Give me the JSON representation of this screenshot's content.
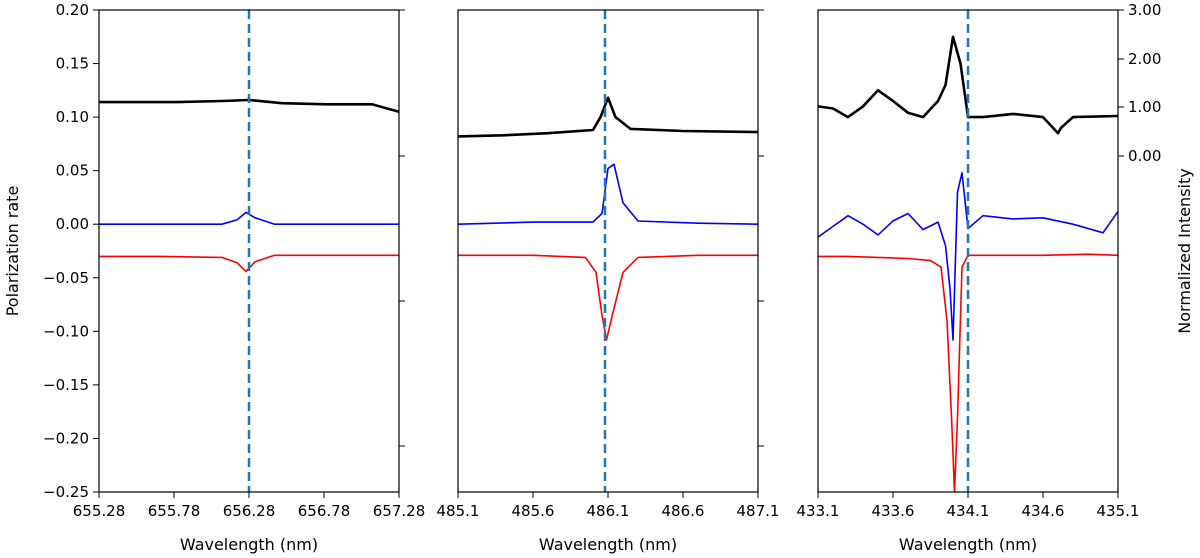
{
  "figure": {
    "y_left_label": "Polarization rate",
    "y_right_label": "Normalized Intensity"
  },
  "colors": {
    "black": "#000000",
    "blue": "#0000ff",
    "red": "#ff0000",
    "dashed": "#1f77b4"
  },
  "chart_data": [
    {
      "type": "line",
      "xlabel": "Wavelength (nm)",
      "ylabel": "Polarization rate",
      "xlim": [
        655.28,
        657.28
      ],
      "xticks": [
        "655.28",
        "655.78",
        "656.28",
        "656.78",
        "657.28"
      ],
      "ylim": [
        -0.25,
        0.2
      ],
      "yticks": [
        "0.20",
        "0.15",
        "0.10",
        "0.05",
        "0.00",
        "−0.05",
        "−0.10",
        "−0.15",
        "−0.20",
        "−0.25"
      ],
      "vline_x": 656.28,
      "series": [
        {
          "color": "black",
          "x": [
            655.28,
            655.5,
            655.8,
            656.1,
            656.28,
            656.5,
            656.8,
            657.1,
            657.28
          ],
          "y": [
            0.114,
            0.114,
            0.114,
            0.115,
            0.116,
            0.113,
            0.112,
            0.112,
            0.105
          ]
        },
        {
          "color": "blue",
          "x": [
            655.28,
            655.7,
            656.1,
            656.2,
            656.26,
            656.32,
            656.45,
            656.8,
            657.28
          ],
          "y": [
            0.0,
            0.0,
            0.0,
            0.004,
            0.011,
            0.006,
            0.0,
            0.0,
            0.0
          ]
        },
        {
          "color": "red",
          "x": [
            655.28,
            655.7,
            656.1,
            656.2,
            656.26,
            656.32,
            656.45,
            656.8,
            657.28
          ],
          "y": [
            -0.03,
            -0.03,
            -0.031,
            -0.036,
            -0.044,
            -0.035,
            -0.029,
            -0.029,
            -0.029
          ]
        }
      ]
    },
    {
      "type": "line",
      "xlabel": "Wavelength (nm)",
      "xlim": [
        485.1,
        487.1
      ],
      "xticks": [
        "485.1",
        "485.6",
        "486.1",
        "486.6",
        "487.1"
      ],
      "ylim": [
        -0.25,
        0.2
      ],
      "vline_x": 486.08,
      "series": [
        {
          "color": "black",
          "x": [
            485.1,
            485.4,
            485.7,
            486.0,
            486.05,
            486.1,
            486.15,
            486.25,
            486.6,
            487.1
          ],
          "y": [
            0.082,
            0.083,
            0.085,
            0.088,
            0.1,
            0.118,
            0.1,
            0.089,
            0.087,
            0.086
          ]
        },
        {
          "color": "blue",
          "x": [
            485.1,
            485.6,
            486.0,
            486.06,
            486.1,
            486.14,
            486.2,
            486.3,
            486.7,
            487.1
          ],
          "y": [
            0.0,
            0.002,
            0.002,
            0.01,
            0.052,
            0.056,
            0.02,
            0.003,
            0.001,
            0.0
          ]
        },
        {
          "color": "red",
          "x": [
            485.1,
            485.6,
            485.95,
            486.02,
            486.06,
            486.09,
            486.12,
            486.2,
            486.3,
            486.7,
            487.1
          ],
          "y": [
            -0.029,
            -0.029,
            -0.031,
            -0.045,
            -0.085,
            -0.108,
            -0.09,
            -0.045,
            -0.031,
            -0.029,
            -0.029
          ]
        }
      ]
    },
    {
      "type": "line",
      "xlabel": "Wavelength (nm)",
      "ylabel": "Normalized Intensity",
      "xlim": [
        433.1,
        435.1
      ],
      "xticks": [
        "433.1",
        "433.6",
        "434.1",
        "434.6",
        "435.1"
      ],
      "ylim": [
        -0.25,
        0.2
      ],
      "y_right_ticks": [
        "3.00",
        "2.00",
        "1.00",
        "0.00"
      ],
      "vline_x": 434.1,
      "series": [
        {
          "color": "black",
          "x": [
            433.1,
            433.2,
            433.3,
            433.4,
            433.5,
            433.6,
            433.7,
            433.8,
            433.9,
            433.95,
            434.0,
            434.05,
            434.1,
            434.2,
            434.4,
            434.6,
            434.7,
            434.72,
            434.8,
            435.1
          ],
          "y": [
            0.11,
            0.108,
            0.1,
            0.11,
            0.125,
            0.115,
            0.104,
            0.1,
            0.115,
            0.13,
            0.175,
            0.15,
            0.1,
            0.1,
            0.103,
            0.1,
            0.085,
            0.09,
            0.1,
            0.101
          ]
        },
        {
          "color": "blue",
          "x": [
            433.1,
            433.2,
            433.3,
            433.4,
            433.5,
            433.6,
            433.7,
            433.8,
            433.9,
            433.95,
            433.98,
            434.0,
            434.03,
            434.06,
            434.1,
            434.2,
            434.4,
            434.6,
            434.8,
            435.0,
            435.1
          ],
          "y": [
            -0.012,
            -0.002,
            0.008,
            0.0,
            -0.01,
            0.003,
            0.01,
            -0.005,
            0.002,
            -0.02,
            -0.06,
            -0.108,
            0.03,
            0.048,
            -0.004,
            0.008,
            0.005,
            0.006,
            0.0,
            -0.008,
            0.012
          ]
        },
        {
          "color": "red",
          "x": [
            433.1,
            433.3,
            433.5,
            433.7,
            433.85,
            433.92,
            433.96,
            433.99,
            434.01,
            434.03,
            434.06,
            434.1,
            434.3,
            434.6,
            434.9,
            435.1
          ],
          "y": [
            -0.03,
            -0.03,
            -0.031,
            -0.032,
            -0.034,
            -0.04,
            -0.09,
            -0.18,
            -0.25,
            -0.18,
            -0.04,
            -0.029,
            -0.029,
            -0.029,
            -0.028,
            -0.029
          ]
        }
      ]
    }
  ]
}
